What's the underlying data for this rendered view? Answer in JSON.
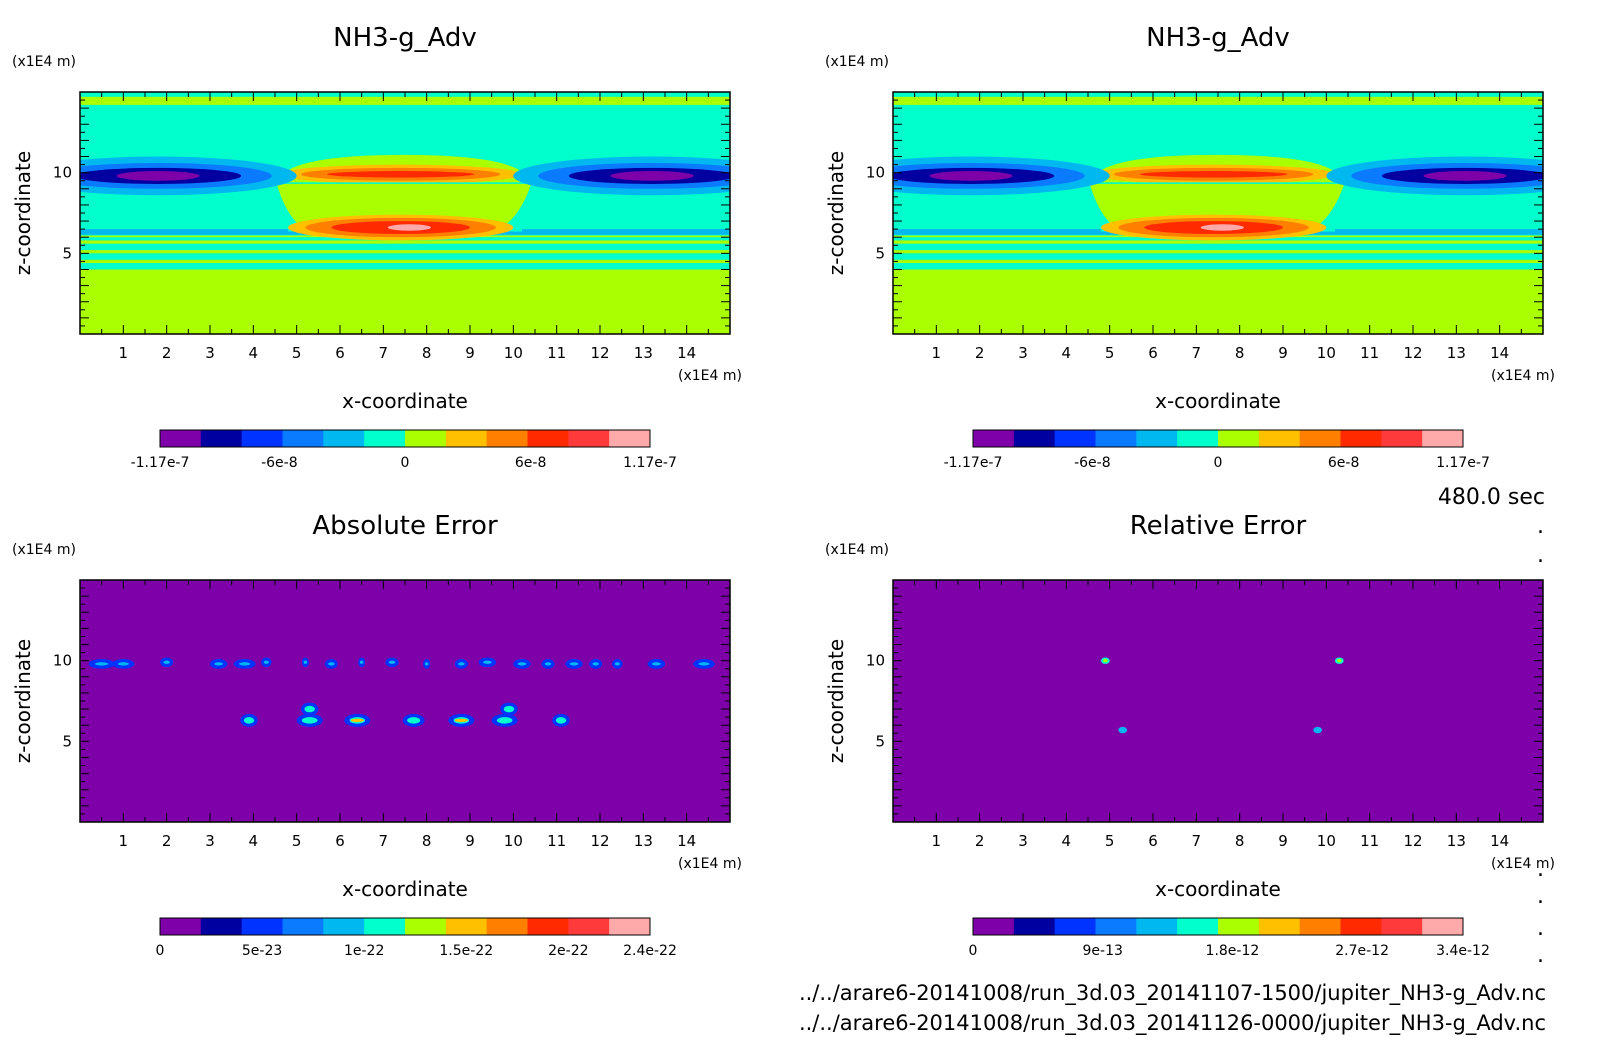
{
  "time_label": "480.0 sec",
  "file_lines": [
    "../../arare6-20141008/run_3d.03_20141107-1500/jupiter_NH3-g_Adv.nc",
    "../../arare6-20141008/run_3d.03_20141126-0000/jupiter_NH3-g_Adv.nc"
  ],
  "colors": {
    "rainbow": [
      "#7d00a8",
      "#0000a0",
      "#0033ff",
      "#0a7aff",
      "#00b8f0",
      "#00ffcc",
      "#aaff00",
      "#ffc000",
      "#ff8000",
      "#ff2a00",
      "#ff3a3a",
      "#ffaaaa"
    ],
    "background": "#ffffff"
  },
  "chart_data": [
    {
      "type": "heatmap",
      "title": "NH3-g_Adv",
      "xlabel": "x-coordinate",
      "ylabel": "z-coordinate",
      "x_unit": "(x1E4 m)",
      "y_unit": "(x1E4 m)",
      "xlim": [
        0,
        15
      ],
      "ylim": [
        0,
        15
      ],
      "x_ticks": [
        "1",
        "2",
        "3",
        "4",
        "5",
        "6",
        "7",
        "8",
        "9",
        "10",
        "11",
        "12",
        "13",
        "14"
      ],
      "y_ticks": [
        "5",
        "10"
      ],
      "colorbar_ticks": [
        "-1.17e-7",
        "-6e-8",
        "0",
        "6e-8",
        "1.17e-7"
      ],
      "colorbar_range": [
        -1.17e-07,
        1.17e-07
      ],
      "pattern": "field"
    },
    {
      "type": "heatmap",
      "title": "NH3-g_Adv",
      "xlabel": "x-coordinate",
      "ylabel": "z-coordinate",
      "x_unit": "(x1E4 m)",
      "y_unit": "(x1E4 m)",
      "xlim": [
        0,
        15
      ],
      "ylim": [
        0,
        15
      ],
      "x_ticks": [
        "1",
        "2",
        "3",
        "4",
        "5",
        "6",
        "7",
        "8",
        "9",
        "10",
        "11",
        "12",
        "13",
        "14"
      ],
      "y_ticks": [
        "5",
        "10"
      ],
      "colorbar_ticks": [
        "-1.17e-7",
        "-6e-8",
        "0",
        "6e-8",
        "1.17e-7"
      ],
      "colorbar_range": [
        -1.17e-07,
        1.17e-07
      ],
      "pattern": "field"
    },
    {
      "type": "heatmap",
      "title": "Absolute Error",
      "xlabel": "x-coordinate",
      "ylabel": "z-coordinate",
      "x_unit": "(x1E4 m)",
      "y_unit": "(x1E4 m)",
      "xlim": [
        0,
        15
      ],
      "ylim": [
        0,
        15
      ],
      "x_ticks": [
        "1",
        "2",
        "3",
        "4",
        "5",
        "6",
        "7",
        "8",
        "9",
        "10",
        "11",
        "12",
        "13",
        "14"
      ],
      "y_ticks": [
        "5",
        "10"
      ],
      "colorbar_ticks": [
        "0",
        "5e-23",
        "1e-22",
        "1.5e-22",
        "2e-22",
        "2.4e-22"
      ],
      "colorbar_range": [
        0,
        2.4e-22
      ],
      "pattern": "abs_error"
    },
    {
      "type": "heatmap",
      "title": "Relative Error",
      "xlabel": "x-coordinate",
      "ylabel": "z-coordinate",
      "x_unit": "(x1E4 m)",
      "y_unit": "(x1E4 m)",
      "xlim": [
        0,
        15
      ],
      "ylim": [
        0,
        15
      ],
      "x_ticks": [
        "1",
        "2",
        "3",
        "4",
        "5",
        "6",
        "7",
        "8",
        "9",
        "10",
        "11",
        "12",
        "13",
        "14"
      ],
      "y_ticks": [
        "5",
        "10"
      ],
      "colorbar_ticks": [
        "0",
        "9e-13",
        "1.8e-12",
        "2.7e-12",
        "3.4e-12"
      ],
      "colorbar_range": [
        0,
        3.4e-12
      ],
      "pattern": "rel_error"
    }
  ]
}
